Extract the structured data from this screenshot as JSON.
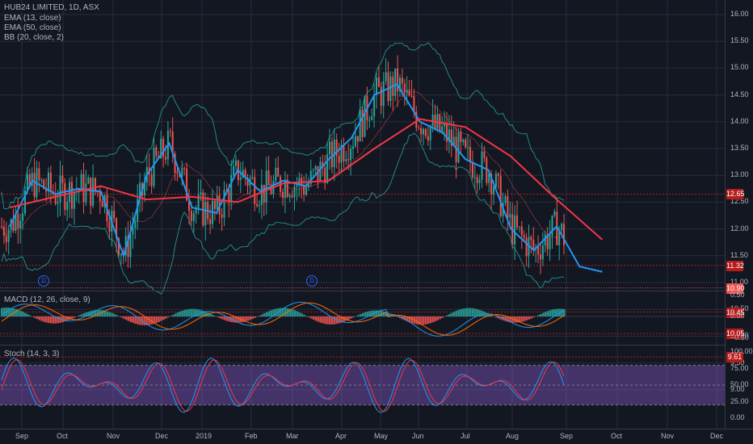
{
  "header": {
    "symbol_title": "HUB24 LIMITED, 1D, ASX",
    "indicators": [
      "EMA (13, close)",
      "EMA (50, close)",
      "BB (20, close, 2)"
    ]
  },
  "macd_panel": {
    "title": "MACD (12, 26, close, 9)",
    "ticks": [
      "0.50",
      "0.00",
      "−0.50"
    ]
  },
  "stoch_panel": {
    "title": "Stoch (14, 3, 3)",
    "ticks": [
      "100.00",
      "75.00",
      "50.00",
      "25.00",
      "0.00"
    ]
  },
  "price_axis": {
    "ticks": [
      "16.00",
      "15.50",
      "15.00",
      "14.50",
      "14.00",
      "13.50",
      "13.00",
      "12.50",
      "12.00",
      "11.50",
      "11.00",
      "10.50",
      "10.00",
      "9.50",
      "9.00"
    ],
    "markers": [
      {
        "label": "12.65",
        "color": "#b71c1c"
      },
      {
        "label": "11.32",
        "color": "#b71c1c"
      },
      {
        "label": "10.90",
        "color": "#ef5350"
      },
      {
        "label": "10.45",
        "color": "#b71c1c"
      },
      {
        "label": "10.05",
        "color": "#b71c1c"
      },
      {
        "label": "9.61",
        "color": "#b71c1c"
      }
    ]
  },
  "time_axis": {
    "labels": [
      "Sep",
      "Oct",
      "Nov",
      "Dec",
      "2019",
      "Feb",
      "Mar",
      "Apr",
      "May",
      "Jun",
      "Jul",
      "Aug",
      "Sep",
      "Oct",
      "Nov",
      "Dec"
    ]
  },
  "dividend_marker": "D",
  "colors": {
    "background": "#131722",
    "up": "#26a69a",
    "down": "#ef5350",
    "ema_fast": "#2196f3",
    "ema_slow": "#f23645",
    "bb": "#26a69a",
    "macd": "#2196f3",
    "signal": "#ff6d00",
    "stoch_k": "#2196f3",
    "stoch_d": "#f23645",
    "stoch_band": "#7e57c2"
  },
  "chart_data": {
    "type": "candlestick",
    "title": "HUB24 LIMITED, 1D, ASX",
    "ylim": [
      8.85,
      16.15
    ],
    "series": [
      {
        "name": "EMA (13, close)",
        "x": [
          "2018-08-27",
          "2018-09-10",
          "2018-09-24",
          "2018-10-08",
          "2018-10-22",
          "2018-11-05",
          "2018-11-19",
          "2018-12-03",
          "2018-12-17",
          "2019-01-01",
          "2019-01-14",
          "2019-01-28",
          "2019-02-11",
          "2019-02-25",
          "2019-03-11",
          "2019-03-25",
          "2019-04-08",
          "2019-04-22",
          "2019-05-06",
          "2019-05-20",
          "2019-06-03",
          "2019-06-17",
          "2019-07-01",
          "2019-07-15",
          "2019-07-29",
          "2019-08-12",
          "2019-08-26"
        ],
        "y": [
          12.05,
          12.9,
          12.65,
          12.75,
          12.7,
          11.5,
          13.0,
          13.6,
          12.4,
          12.3,
          13.1,
          12.7,
          12.9,
          12.8,
          13.3,
          13.7,
          14.5,
          14.7,
          14.0,
          13.8,
          13.3,
          13.1,
          12.0,
          11.6,
          12.05,
          11.3,
          11.2
        ]
      },
      {
        "name": "EMA (50, close)",
        "x": [
          "2018-08-27",
          "2018-09-24",
          "2018-10-22",
          "2018-11-19",
          "2018-12-17",
          "2019-01-14",
          "2019-02-11",
          "2019-03-11",
          "2019-04-08",
          "2019-05-06",
          "2019-06-03",
          "2019-07-01",
          "2019-07-29",
          "2019-08-26"
        ],
        "y": [
          12.4,
          12.6,
          12.8,
          12.55,
          12.6,
          12.5,
          12.85,
          12.9,
          13.5,
          14.05,
          13.9,
          13.35,
          12.55,
          11.8
        ]
      }
    ],
    "price_lines": [
      12.65,
      11.32,
      10.9,
      10.45,
      10.05,
      9.61
    ],
    "last_price": 10.9,
    "macd_ylim": [
      -0.62,
      0.62
    ],
    "stoch_ylim": [
      0,
      100
    ],
    "stoch_bands": [
      20,
      80
    ]
  }
}
